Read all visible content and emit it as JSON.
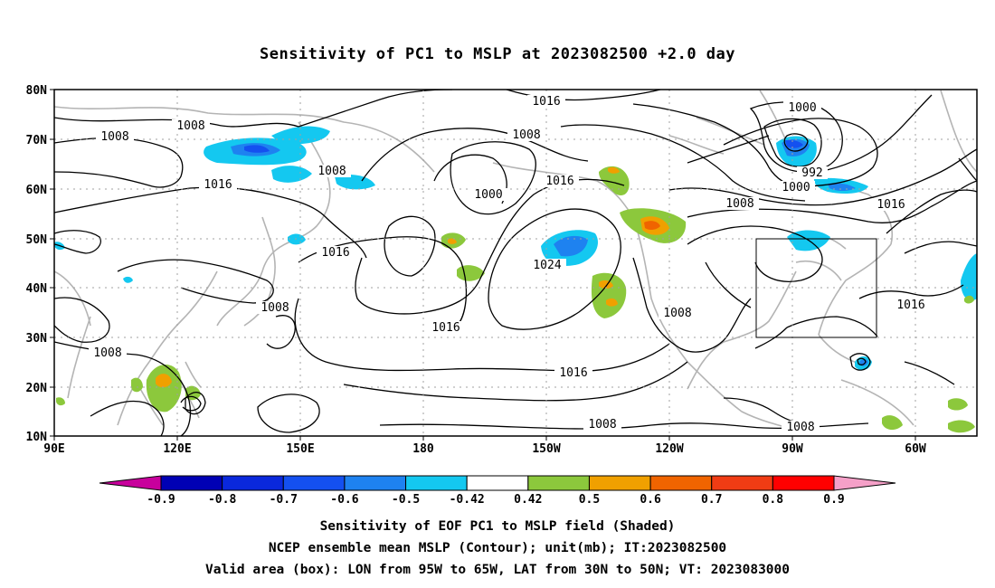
{
  "title": "Sensitivity of PC1 to MSLP at 2023082500 +2.0 day",
  "lat_labels": [
    "80N",
    "70N",
    "60N",
    "50N",
    "40N",
    "30N",
    "20N",
    "10N"
  ],
  "lon_labels": [
    "90E",
    "120E",
    "150E",
    "180",
    "150W",
    "120W",
    "90W",
    "60W"
  ],
  "contour_labels": [
    {
      "t": "1016"
    },
    {
      "t": "1008"
    },
    {
      "t": "1008"
    },
    {
      "t": "1008"
    },
    {
      "t": "1016"
    },
    {
      "t": "1000"
    },
    {
      "t": "1016"
    },
    {
      "t": "1008"
    },
    {
      "t": "1000"
    },
    {
      "t": "992"
    },
    {
      "t": "1000"
    },
    {
      "t": "1016"
    },
    {
      "t": "1008"
    },
    {
      "t": "1016"
    },
    {
      "t": "1024"
    },
    {
      "t": "1008"
    },
    {
      "t": "1008"
    },
    {
      "t": "1016"
    },
    {
      "t": "1008"
    },
    {
      "t": "1016"
    },
    {
      "t": "1016"
    },
    {
      "t": "1008"
    },
    {
      "t": "1008"
    }
  ],
  "colorbar": {
    "labels": [
      "-0.9",
      "-0.8",
      "-0.7",
      "-0.6",
      "-0.5",
      "-0.42",
      "0.42",
      "0.5",
      "0.6",
      "0.7",
      "0.8",
      "0.9"
    ],
    "colors": [
      "#c8009c",
      "#0000b4",
      "#0a28dc",
      "#1450f0",
      "#1e82f0",
      "#14c8f0",
      "#ffffff",
      "#8cc83c",
      "#f0a000",
      "#f06400",
      "#f03c14",
      "#ff0000",
      "#f5a0c8"
    ]
  },
  "valid_box": {
    "lon_from": "95W",
    "lon_to": "65W",
    "lat_from": "30N",
    "lat_to": "50N"
  },
  "footer": {
    "line1": "Sensitivity of EOF PC1 to MSLP field (Shaded)",
    "line2": "NCEP ensemble mean MSLP (Contour); unit(mb); IT:2023082500",
    "line3": "Valid area (box): LON from 95W to 65W, LAT from 30N to 50N; VT: 2023083000"
  },
  "colors": {
    "contour": "#000000",
    "coast": "#b4b4b4",
    "grid": "#a0a0a0",
    "frame": "#000000"
  }
}
